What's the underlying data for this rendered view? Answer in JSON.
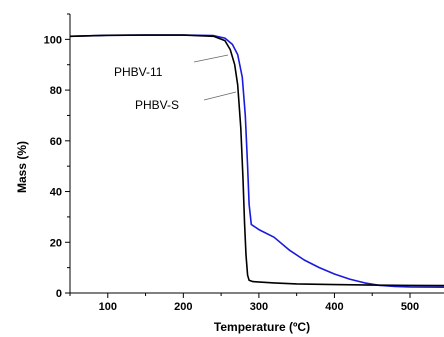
{
  "chart_data": {
    "type": "line",
    "xlabel": "Temperature (ºC)",
    "ylabel": "Mass (%)",
    "xlim": [
      50,
      545
    ],
    "ylim": [
      0,
      110
    ],
    "x_ticks": [
      100,
      200,
      300,
      400,
      500
    ],
    "y_ticks": [
      0,
      20,
      40,
      60,
      80,
      100
    ],
    "grid": false,
    "series": [
      {
        "name": "PHBV-11",
        "color": "#1a1adc",
        "points": [
          [
            50,
            101.2
          ],
          [
            100,
            101.6
          ],
          [
            150,
            101.7
          ],
          [
            200,
            101.7
          ],
          [
            240,
            101.5
          ],
          [
            255,
            100.5
          ],
          [
            265,
            98
          ],
          [
            272,
            94
          ],
          [
            278,
            85
          ],
          [
            282,
            70
          ],
          [
            285,
            50
          ],
          [
            287,
            35
          ],
          [
            290,
            27
          ],
          [
            300,
            25
          ],
          [
            320,
            22
          ],
          [
            340,
            17
          ],
          [
            360,
            13
          ],
          [
            380,
            10
          ],
          [
            400,
            7.5
          ],
          [
            420,
            5.5
          ],
          [
            440,
            4
          ],
          [
            460,
            3
          ],
          [
            480,
            2.6
          ],
          [
            500,
            2.4
          ],
          [
            545,
            2.3
          ]
        ]
      },
      {
        "name": "PHBV-S",
        "color": "#000000",
        "points": [
          [
            50,
            101.2
          ],
          [
            100,
            101.6
          ],
          [
            150,
            101.7
          ],
          [
            200,
            101.7
          ],
          [
            240,
            101.2
          ],
          [
            255,
            99.5
          ],
          [
            262,
            96
          ],
          [
            268,
            90
          ],
          [
            272,
            82
          ],
          [
            276,
            65
          ],
          [
            279,
            45
          ],
          [
            281,
            28
          ],
          [
            283,
            15
          ],
          [
            285,
            7
          ],
          [
            287,
            5
          ],
          [
            292,
            4.5
          ],
          [
            320,
            4
          ],
          [
            350,
            3.6
          ],
          [
            400,
            3.3
          ],
          [
            450,
            3.1
          ],
          [
            500,
            3
          ],
          [
            545,
            2.9
          ]
        ]
      }
    ],
    "annotations": [
      "PHBV-11",
      "PHBV-S"
    ]
  }
}
